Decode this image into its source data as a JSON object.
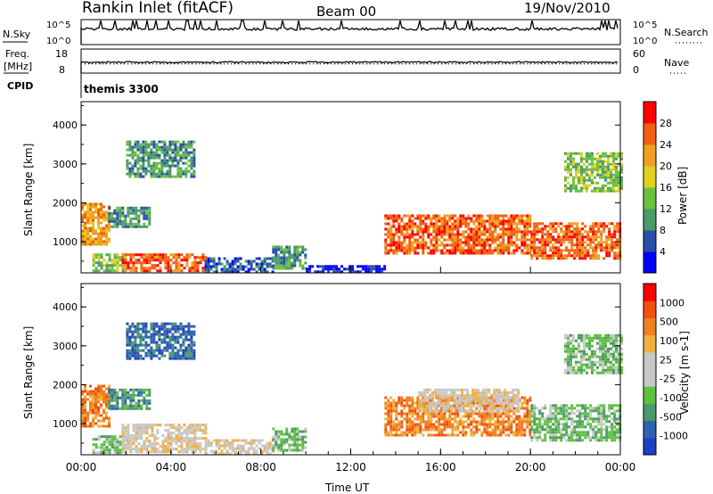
{
  "header": {
    "title": "Rankin Inlet (fitACF)",
    "beam": "Beam 00",
    "date": "19/Nov/2010"
  },
  "strips": {
    "nsky": {
      "label": "N.Sky",
      "ticks": [
        "10^5",
        "10^0"
      ],
      "right_label": "N.Search",
      "right_ticks": [
        "10^5",
        "10^0"
      ]
    },
    "freq": {
      "label_line1": "Freq.",
      "label_line2": "[MHz]",
      "ticks": [
        "18",
        "8"
      ],
      "right_label": "Nave",
      "right_ticks": [
        "60",
        "0"
      ]
    },
    "cpid": {
      "label": "CPID",
      "value": "themis 3300"
    }
  },
  "colors": {
    "power": [
      "#0000ff",
      "#2a4fa8",
      "#4a9a6a",
      "#6cc040",
      "#e0d020",
      "#f0a020",
      "#f06010",
      "#ff0000"
    ],
    "velocity": [
      "#ff0000",
      "#f05010",
      "#f08020",
      "#f0b040",
      "#c8c8c8",
      "#c8c8c8",
      "#60c040",
      "#4a9a6a",
      "#3060b0",
      "#2040c0"
    ]
  },
  "chart_data": [
    {
      "type": "heatmap",
      "panel": "power",
      "ylabel": "Slant Range [km]",
      "yticks": [
        "1000",
        "2000",
        "3000",
        "4000"
      ],
      "ylim": [
        200,
        4600
      ],
      "xlim": [
        0,
        24
      ],
      "colorbar_label": "Power [dB]",
      "colorbar_ticks": [
        "4",
        "8",
        "12",
        "16",
        "20",
        "24",
        "28"
      ],
      "regions": [
        {
          "t0": 0.0,
          "t1": 1.3,
          "r0": 900,
          "r1": 2000,
          "level": 5
        },
        {
          "t0": 0.5,
          "t1": 2.0,
          "r0": 250,
          "r1": 700,
          "level": 3
        },
        {
          "t0": 1.8,
          "t1": 5.5,
          "r0": 250,
          "r1": 700,
          "level": 6
        },
        {
          "t0": 1.2,
          "t1": 3.0,
          "r0": 1400,
          "r1": 1900,
          "level": 2
        },
        {
          "t0": 5.5,
          "t1": 8.5,
          "r0": 250,
          "r1": 600,
          "level": 1
        },
        {
          "t0": 8.5,
          "t1": 10.0,
          "r0": 300,
          "r1": 900,
          "level": 2
        },
        {
          "t0": 10.0,
          "t1": 13.5,
          "r0": 250,
          "r1": 400,
          "level": 0
        },
        {
          "t0": 13.5,
          "t1": 20.0,
          "r0": 700,
          "r1": 1700,
          "level": 6
        },
        {
          "t0": 20.0,
          "t1": 24.0,
          "r0": 600,
          "r1": 1500,
          "level": 6
        },
        {
          "t0": 21.5,
          "t1": 24.0,
          "r0": 2300,
          "r1": 3300,
          "level": 3
        },
        {
          "t0": 2.0,
          "t1": 5.0,
          "r0": 2700,
          "r1": 3600,
          "level": 2
        }
      ]
    },
    {
      "type": "heatmap",
      "panel": "velocity",
      "ylabel": "Slant Range [km]",
      "yticks": [
        "1000",
        "2000",
        "3000",
        "4000"
      ],
      "ylim": [
        200,
        4600
      ],
      "xlim": [
        0,
        24
      ],
      "xticks": [
        "00:00",
        "04:00",
        "08:00",
        "12:00",
        "16:00",
        "20:00",
        "00:00"
      ],
      "xlabel": "Time UT",
      "colorbar_label": "Velocity [m s-1]",
      "colorbar_ticks": [
        "1000",
        "500",
        "100",
        "25",
        "-25",
        "-100",
        "-500",
        "-1000"
      ],
      "regions": [
        {
          "t0": 0.0,
          "t1": 1.3,
          "r0": 900,
          "r1": 2000,
          "level": 2
        },
        {
          "t0": 0.5,
          "t1": 2.0,
          "r0": 250,
          "r1": 700,
          "level": 6
        },
        {
          "t0": 1.8,
          "t1": 5.5,
          "r0": 250,
          "r1": 1000,
          "level": 4
        },
        {
          "t0": 1.2,
          "t1": 3.0,
          "r0": 1400,
          "r1": 1900,
          "level": 7
        },
        {
          "t0": 5.5,
          "t1": 8.5,
          "r0": 250,
          "r1": 600,
          "level": 4
        },
        {
          "t0": 8.5,
          "t1": 10.0,
          "r0": 300,
          "r1": 900,
          "level": 6
        },
        {
          "t0": 13.5,
          "t1": 20.0,
          "r0": 700,
          "r1": 1700,
          "level": 2
        },
        {
          "t0": 15.0,
          "t1": 19.5,
          "r0": 1300,
          "r1": 1900,
          "level": 4
        },
        {
          "t0": 20.0,
          "t1": 24.0,
          "r0": 600,
          "r1": 1500,
          "level": 6
        },
        {
          "t0": 21.5,
          "t1": 24.0,
          "r0": 2300,
          "r1": 3300,
          "level": 6
        },
        {
          "t0": 2.0,
          "t1": 5.0,
          "r0": 2700,
          "r1": 3600,
          "level": 8
        }
      ]
    }
  ]
}
